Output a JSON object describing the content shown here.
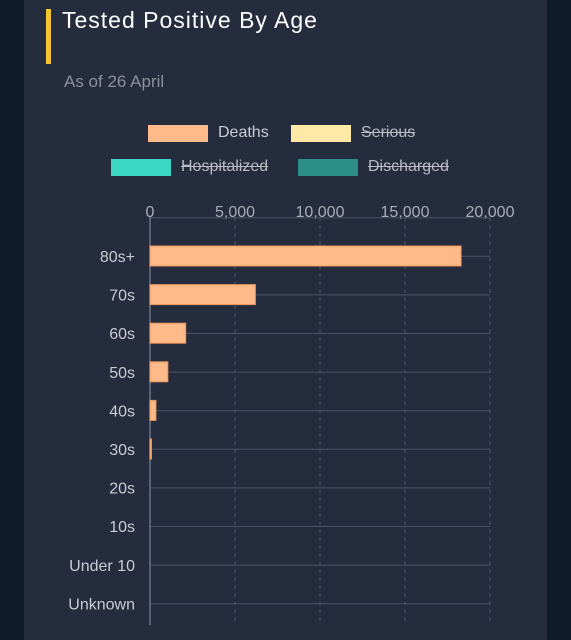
{
  "card": {
    "title": "Tested Positive By Age",
    "subtitle": "As of 26 April"
  },
  "legend": [
    {
      "label": "Deaths",
      "color": "#ffba8a",
      "active": true
    },
    {
      "label": "Serious",
      "color": "#ffe9a6",
      "active": false
    },
    {
      "label": "Hospitalized",
      "color": "#3dd8c4",
      "active": false
    },
    {
      "label": "Discharged",
      "color": "#2e8f8a",
      "active": false
    }
  ],
  "colors": {
    "background": "#252c3d",
    "accent": "#f2c531",
    "grid": "#4a5266",
    "bar": "#ffba8a",
    "bar_border": "#e8955c"
  },
  "chart_data": {
    "type": "bar",
    "orientation": "horizontal",
    "categories": [
      "80s+",
      "70s",
      "60s",
      "50s",
      "40s",
      "30s",
      "20s",
      "10s",
      "Under 10",
      "Unknown"
    ],
    "series": [
      {
        "name": "Deaths",
        "values": [
          18300,
          6200,
          2100,
          1050,
          350,
          80,
          0,
          0,
          0,
          0
        ]
      }
    ],
    "x_ticks": [
      "0",
      "5,000",
      "10,000",
      "15,000",
      "20,000"
    ],
    "xlim": [
      0,
      20000
    ],
    "grid": true,
    "legend_position": "top"
  }
}
